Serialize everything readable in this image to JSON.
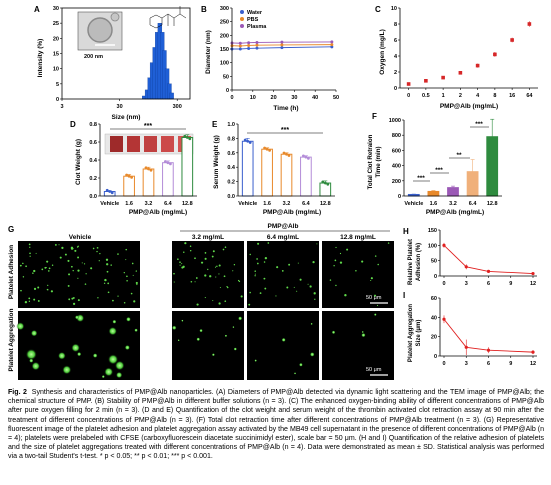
{
  "panels": {
    "A": {
      "letter": "A",
      "xlabel": "Size (nm)",
      "ylabel": "Intensity (%)",
      "xticks": [
        "3",
        "30",
        "300"
      ],
      "yticks": [
        "0",
        "5",
        "10",
        "15",
        "20",
        "25",
        "30"
      ],
      "scale_label": "200 nm"
    },
    "B": {
      "letter": "B",
      "xlabel": "Time (h)",
      "ylabel": "Diameter (nm)",
      "xticks": [
        "0",
        "10",
        "20",
        "30",
        "40",
        "50"
      ],
      "yticks": [
        "0",
        "50",
        "100",
        "150",
        "200",
        "250",
        "300"
      ],
      "legend": [
        "Water",
        "PBS",
        "Plasma"
      ],
      "colors": [
        "#3a5fcd",
        "#e8892a",
        "#9b59b6"
      ]
    },
    "C": {
      "letter": "C",
      "xlabel": "PMP@Alb (mg/mL)",
      "ylabel": "Oxygen (mg/L)",
      "xticks": [
        "0",
        "0.5",
        "1",
        "2",
        "4",
        "8",
        "16",
        "64"
      ],
      "yticks": [
        "0",
        "2",
        "4",
        "6",
        "8",
        "10"
      ],
      "color": "#d62728"
    },
    "D": {
      "letter": "D",
      "ylabel": "Clot Weight (g)",
      "xlabel": "PMP@Alb (mg/mL)",
      "categories": [
        "Vehicle",
        "1.6",
        "3.2",
        "6.4",
        "12.8"
      ],
      "yticks": [
        "0.0",
        "0.2",
        "0.4",
        "0.6",
        "0.8"
      ],
      "sig": "***",
      "colors": [
        "#3a5fcd",
        "#e8892a",
        "#e8892a",
        "#b38cd8",
        "#2e8b3e"
      ]
    },
    "E": {
      "letter": "E",
      "ylabel": "Serum Weight (g)",
      "xlabel": "PMP@Alb (mg/mL)",
      "categories": [
        "Vehicle",
        "1.6",
        "3.2",
        "6.4",
        "12.8"
      ],
      "yticks": [
        "0.0",
        "0.2",
        "0.4",
        "0.6",
        "0.8",
        "1.0"
      ],
      "sig": "***",
      "colors": [
        "#3a5fcd",
        "#e8892a",
        "#e8892a",
        "#b38cd8",
        "#2e8b3e"
      ]
    },
    "F": {
      "letter": "F",
      "ylabel": "Total Clot Retraion Time (min)",
      "xlabel": "PMP@Alb (mg/mL)",
      "categories": [
        "Vehicle",
        "1.6",
        "3.2",
        "6.4",
        "12.8"
      ],
      "yticks": [
        "0",
        "200",
        "400",
        "600",
        "800",
        "1000"
      ],
      "sigs": [
        "***",
        "***",
        "**",
        "***"
      ],
      "colors": [
        "#3a5fcd",
        "#e8892a",
        "#9b59b6",
        "#f0b07a",
        "#2e8b3e"
      ]
    },
    "G": {
      "letter": "G",
      "group_title": "PMP@Alb",
      "columns": [
        "Vehicle",
        "3.2 mg/mL",
        "6.4 mg/mL",
        "12.8 mg/mL"
      ],
      "rows": [
        "Platelet Adhesion",
        "Platelet Aggregation"
      ],
      "scale_label": "50 μm"
    },
    "H": {
      "letter": "H",
      "ylabel": "Relative Platelet Adhesion (%)",
      "xticks": [
        "0",
        "3",
        "6",
        "9",
        "12"
      ],
      "yticks": [
        "0",
        "50",
        "100",
        "150"
      ]
    },
    "I": {
      "letter": "I",
      "ylabel": "Platelet Aggregation Size (μm)",
      "xticks": [
        "0",
        "3",
        "6",
        "9",
        "12"
      ],
      "yticks": [
        "0",
        "20",
        "40",
        "60"
      ]
    }
  },
  "chart_data": [
    {
      "panel": "A",
      "type": "bar",
      "title": "",
      "xlabel": "Size (nm)",
      "ylabel": "Intensity (%)",
      "x": [
        80,
        90,
        100,
        110,
        122,
        135,
        150,
        165,
        180,
        200,
        220,
        240
      ],
      "values": [
        1,
        3,
        7,
        12,
        17,
        22,
        25,
        22,
        16,
        10,
        5,
        2
      ],
      "xscale": "log",
      "xlim": [
        3,
        500
      ],
      "ylim": [
        0,
        30
      ]
    },
    {
      "panel": "B",
      "type": "line",
      "title": "",
      "xlabel": "Time (h)",
      "ylabel": "Diameter (nm)",
      "x": [
        0,
        4,
        8,
        12,
        24,
        48
      ],
      "series": [
        {
          "name": "Water",
          "values": [
            150,
            150,
            152,
            153,
            155,
            158
          ]
        },
        {
          "name": "PBS",
          "values": [
            162,
            161,
            163,
            164,
            165,
            166
          ]
        },
        {
          "name": "Plasma",
          "values": [
            172,
            171,
            173,
            174,
            175,
            176
          ]
        }
      ],
      "xlim": [
        0,
        50
      ],
      "ylim": [
        0,
        300
      ]
    },
    {
      "panel": "C",
      "type": "scatter",
      "title": "",
      "xlabel": "PMP@Alb (mg/mL)",
      "ylabel": "Oxygen (mg/L)",
      "categories": [
        "0",
        "0.5",
        "1",
        "2",
        "4",
        "8",
        "16",
        "64"
      ],
      "values": [
        0.5,
        0.9,
        1.3,
        1.9,
        2.8,
        4.2,
        6.0,
        8.0
      ],
      "errors": [
        0.15,
        0.15,
        0.2,
        0.2,
        0.25,
        0.3,
        0.3,
        0.35
      ],
      "ylim": [
        0,
        10
      ]
    },
    {
      "panel": "D",
      "type": "bar",
      "title": "",
      "xlabel": "PMP@Alb (mg/mL)",
      "ylabel": "Clot Weight (g)",
      "categories": [
        "Vehicle",
        "1.6",
        "3.2",
        "6.4",
        "12.8"
      ],
      "values": [
        0.05,
        0.22,
        0.3,
        0.37,
        0.65
      ],
      "errors": [
        0.01,
        0.02,
        0.02,
        0.02,
        0.03
      ],
      "ylim": [
        0,
        0.8
      ]
    },
    {
      "panel": "E",
      "type": "bar",
      "title": "",
      "xlabel": "PMP@Alb (mg/mL)",
      "ylabel": "Serum Weight (g)",
      "categories": [
        "Vehicle",
        "1.6",
        "3.2",
        "6.4",
        "12.8"
      ],
      "values": [
        0.76,
        0.65,
        0.58,
        0.54,
        0.18
      ],
      "errors": [
        0.04,
        0.02,
        0.02,
        0.02,
        0.03
      ],
      "ylim": [
        0,
        1.0
      ]
    },
    {
      "panel": "F",
      "type": "bar",
      "title": "",
      "xlabel": "PMP@Alb (mg/mL)",
      "ylabel": "Total Clot Retraion Time (min)",
      "categories": [
        "Vehicle",
        "1.6",
        "3.2",
        "6.4",
        "12.8"
      ],
      "values": [
        20,
        60,
        110,
        320,
        780
      ],
      "errors": [
        5,
        10,
        20,
        160,
        230
      ],
      "ylim": [
        0,
        1000
      ]
    },
    {
      "panel": "H",
      "type": "line",
      "title": "",
      "xlabel": "",
      "ylabel": "Relative Platelet Adhesion (%)",
      "x": [
        0,
        3,
        6,
        12
      ],
      "values": [
        100,
        30,
        15,
        8
      ],
      "errors": [
        8,
        8,
        4,
        3
      ],
      "ylim": [
        0,
        150
      ]
    },
    {
      "panel": "I",
      "type": "line",
      "title": "",
      "xlabel": "",
      "ylabel": "Platelet Aggregation Size (μm)",
      "x": [
        0,
        3,
        6,
        12
      ],
      "values": [
        38,
        9,
        6,
        4
      ],
      "errors": [
        4,
        8,
        3,
        2
      ],
      "ylim": [
        0,
        60
      ]
    }
  ],
  "caption": {
    "label": "Fig. 2",
    "text": "Synthesis and characteristics of PMP@Alb nanoparticles. (A) Diameters of PMP@Alb detected via dynamic light scattering and the TEM image of PMP@Alb; the chemical structure of PMP. (B) Stability of PMP@Alb in different buffer solutions (n = 3). (C) The enhanced oxygen-binding ability of different concentrations of PMP@Alb after pure oxygen filling for 2 min (n = 3). (D and E) Quantification of the clot weight and serum weight of the thrombin activated clot retraction assay at 90 min after the treatment of different concentrations of PMP@Alb (n = 3). (F) Total clot retraction time after different concentrations of PMP@Alb treatment (n = 3). (G) Representative fluorescent image of the platelet adhesion and platelet aggregation assay activated by the MB49 cell supernatant in the presence of different concentrations of PMP@Alb (n = 4); platelets were prelabeled with CFSE (carboxyfluorescein diacetate succinimidyl ester), scale bar = 50 μm. (H and I) Quantification of the relative adhesion of platelets and the size of platelet aggregations treated with different concentrations of PMP@Alb (n = 4). Data were demonstrated as mean ± SD. Statistical analysis was performed via a two-tail Student's t-test. * p < 0.05; ** p < 0.01; *** p < 0.001."
  }
}
